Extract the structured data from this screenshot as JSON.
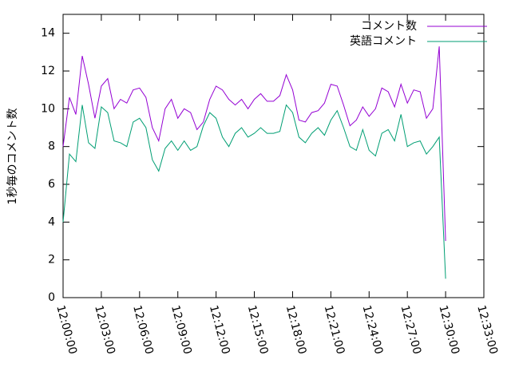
{
  "chart_data": {
    "type": "line",
    "ylabel": "1秒毎のコメント数",
    "x": [
      "12:00:00",
      "12:00:30",
      "12:01:00",
      "12:01:30",
      "12:02:00",
      "12:02:30",
      "12:03:00",
      "12:03:30",
      "12:04:00",
      "12:04:30",
      "12:05:00",
      "12:05:30",
      "12:06:00",
      "12:06:30",
      "12:07:00",
      "12:07:30",
      "12:08:00",
      "12:08:30",
      "12:09:00",
      "12:09:30",
      "12:10:00",
      "12:10:30",
      "12:11:00",
      "12:11:30",
      "12:12:00",
      "12:12:30",
      "12:13:00",
      "12:13:30",
      "12:14:00",
      "12:14:30",
      "12:15:00",
      "12:15:30",
      "12:16:00",
      "12:16:30",
      "12:17:00",
      "12:17:30",
      "12:18:00",
      "12:18:30",
      "12:19:00",
      "12:19:30",
      "12:20:00",
      "12:20:30",
      "12:21:00",
      "12:21:30",
      "12:22:00",
      "12:22:30",
      "12:23:00",
      "12:23:30",
      "12:24:00",
      "12:24:30",
      "12:25:00",
      "12:25:30",
      "12:26:00",
      "12:26:30",
      "12:27:00",
      "12:27:30",
      "12:28:00",
      "12:28:30",
      "12:29:00",
      "12:29:30",
      "12:30:00"
    ],
    "series": [
      {
        "name": "コメント数",
        "color": "#9400d3",
        "values": [
          8.0,
          10.6,
          9.7,
          12.8,
          11.3,
          9.5,
          11.2,
          11.6,
          10.0,
          10.5,
          10.3,
          11.0,
          11.1,
          10.6,
          9.0,
          8.3,
          10.0,
          10.5,
          9.5,
          10.0,
          9.8,
          8.9,
          9.3,
          10.5,
          11.2,
          11.0,
          10.5,
          10.2,
          10.5,
          10.0,
          10.5,
          10.8,
          10.4,
          10.4,
          10.7,
          11.8,
          11.0,
          9.4,
          9.3,
          9.8,
          9.9,
          10.3,
          11.3,
          11.2,
          10.2,
          9.1,
          9.4,
          10.1,
          9.6,
          10.0,
          11.1,
          10.9,
          10.1,
          11.3,
          10.3,
          11.0,
          10.9,
          9.5,
          10.0,
          13.3,
          3.0
        ]
      },
      {
        "name": "英語コメント",
        "color": "#009e73",
        "values": [
          4.0,
          7.6,
          7.2,
          10.2,
          8.2,
          7.9,
          10.1,
          9.8,
          8.3,
          8.2,
          8.0,
          9.3,
          9.5,
          9.0,
          7.3,
          6.7,
          7.9,
          8.3,
          7.8,
          8.3,
          7.8,
          8.0,
          9.1,
          9.8,
          9.5,
          8.5,
          8.0,
          8.7,
          9.0,
          8.5,
          8.7,
          9.0,
          8.7,
          8.7,
          8.8,
          10.2,
          9.8,
          8.5,
          8.2,
          8.7,
          9.0,
          8.6,
          9.4,
          9.9,
          9.0,
          8.0,
          7.8,
          8.9,
          7.8,
          7.5,
          8.7,
          8.9,
          8.3,
          9.7,
          8.0,
          8.2,
          8.3,
          7.6,
          8.0,
          8.5,
          1.0
        ]
      }
    ],
    "xlim": [
      "12:00:00",
      "12:33:00"
    ],
    "xticks": [
      "12:00:00",
      "12:03:00",
      "12:06:00",
      "12:09:00",
      "12:12:00",
      "12:15:00",
      "12:18:00",
      "12:21:00",
      "12:24:00",
      "12:27:00",
      "12:30:00",
      "12:33:00"
    ],
    "ylim": [
      0,
      15
    ],
    "yticks": [
      0,
      2,
      4,
      6,
      8,
      10,
      12,
      14
    ],
    "legend": "top-right"
  }
}
